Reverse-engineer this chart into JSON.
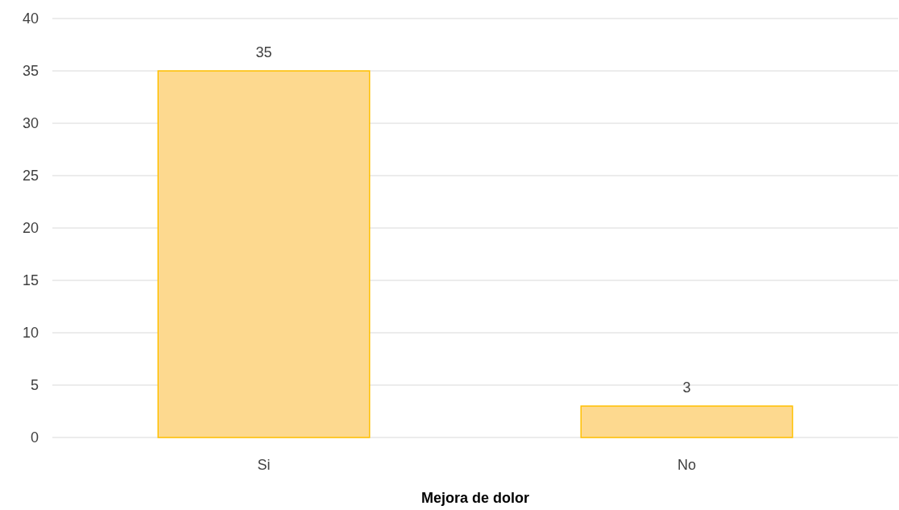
{
  "chart_data": {
    "type": "bar",
    "xlabel": "Mejora de dolor",
    "categories": [
      "Si",
      "No"
    ],
    "values": [
      35,
      3
    ],
    "color": "#fdd98f",
    "ylim": [
      0,
      40
    ],
    "yticks": [
      0,
      5,
      10,
      15,
      20,
      25,
      30,
      35,
      40
    ],
    "grid": "y",
    "data_labels": true
  }
}
